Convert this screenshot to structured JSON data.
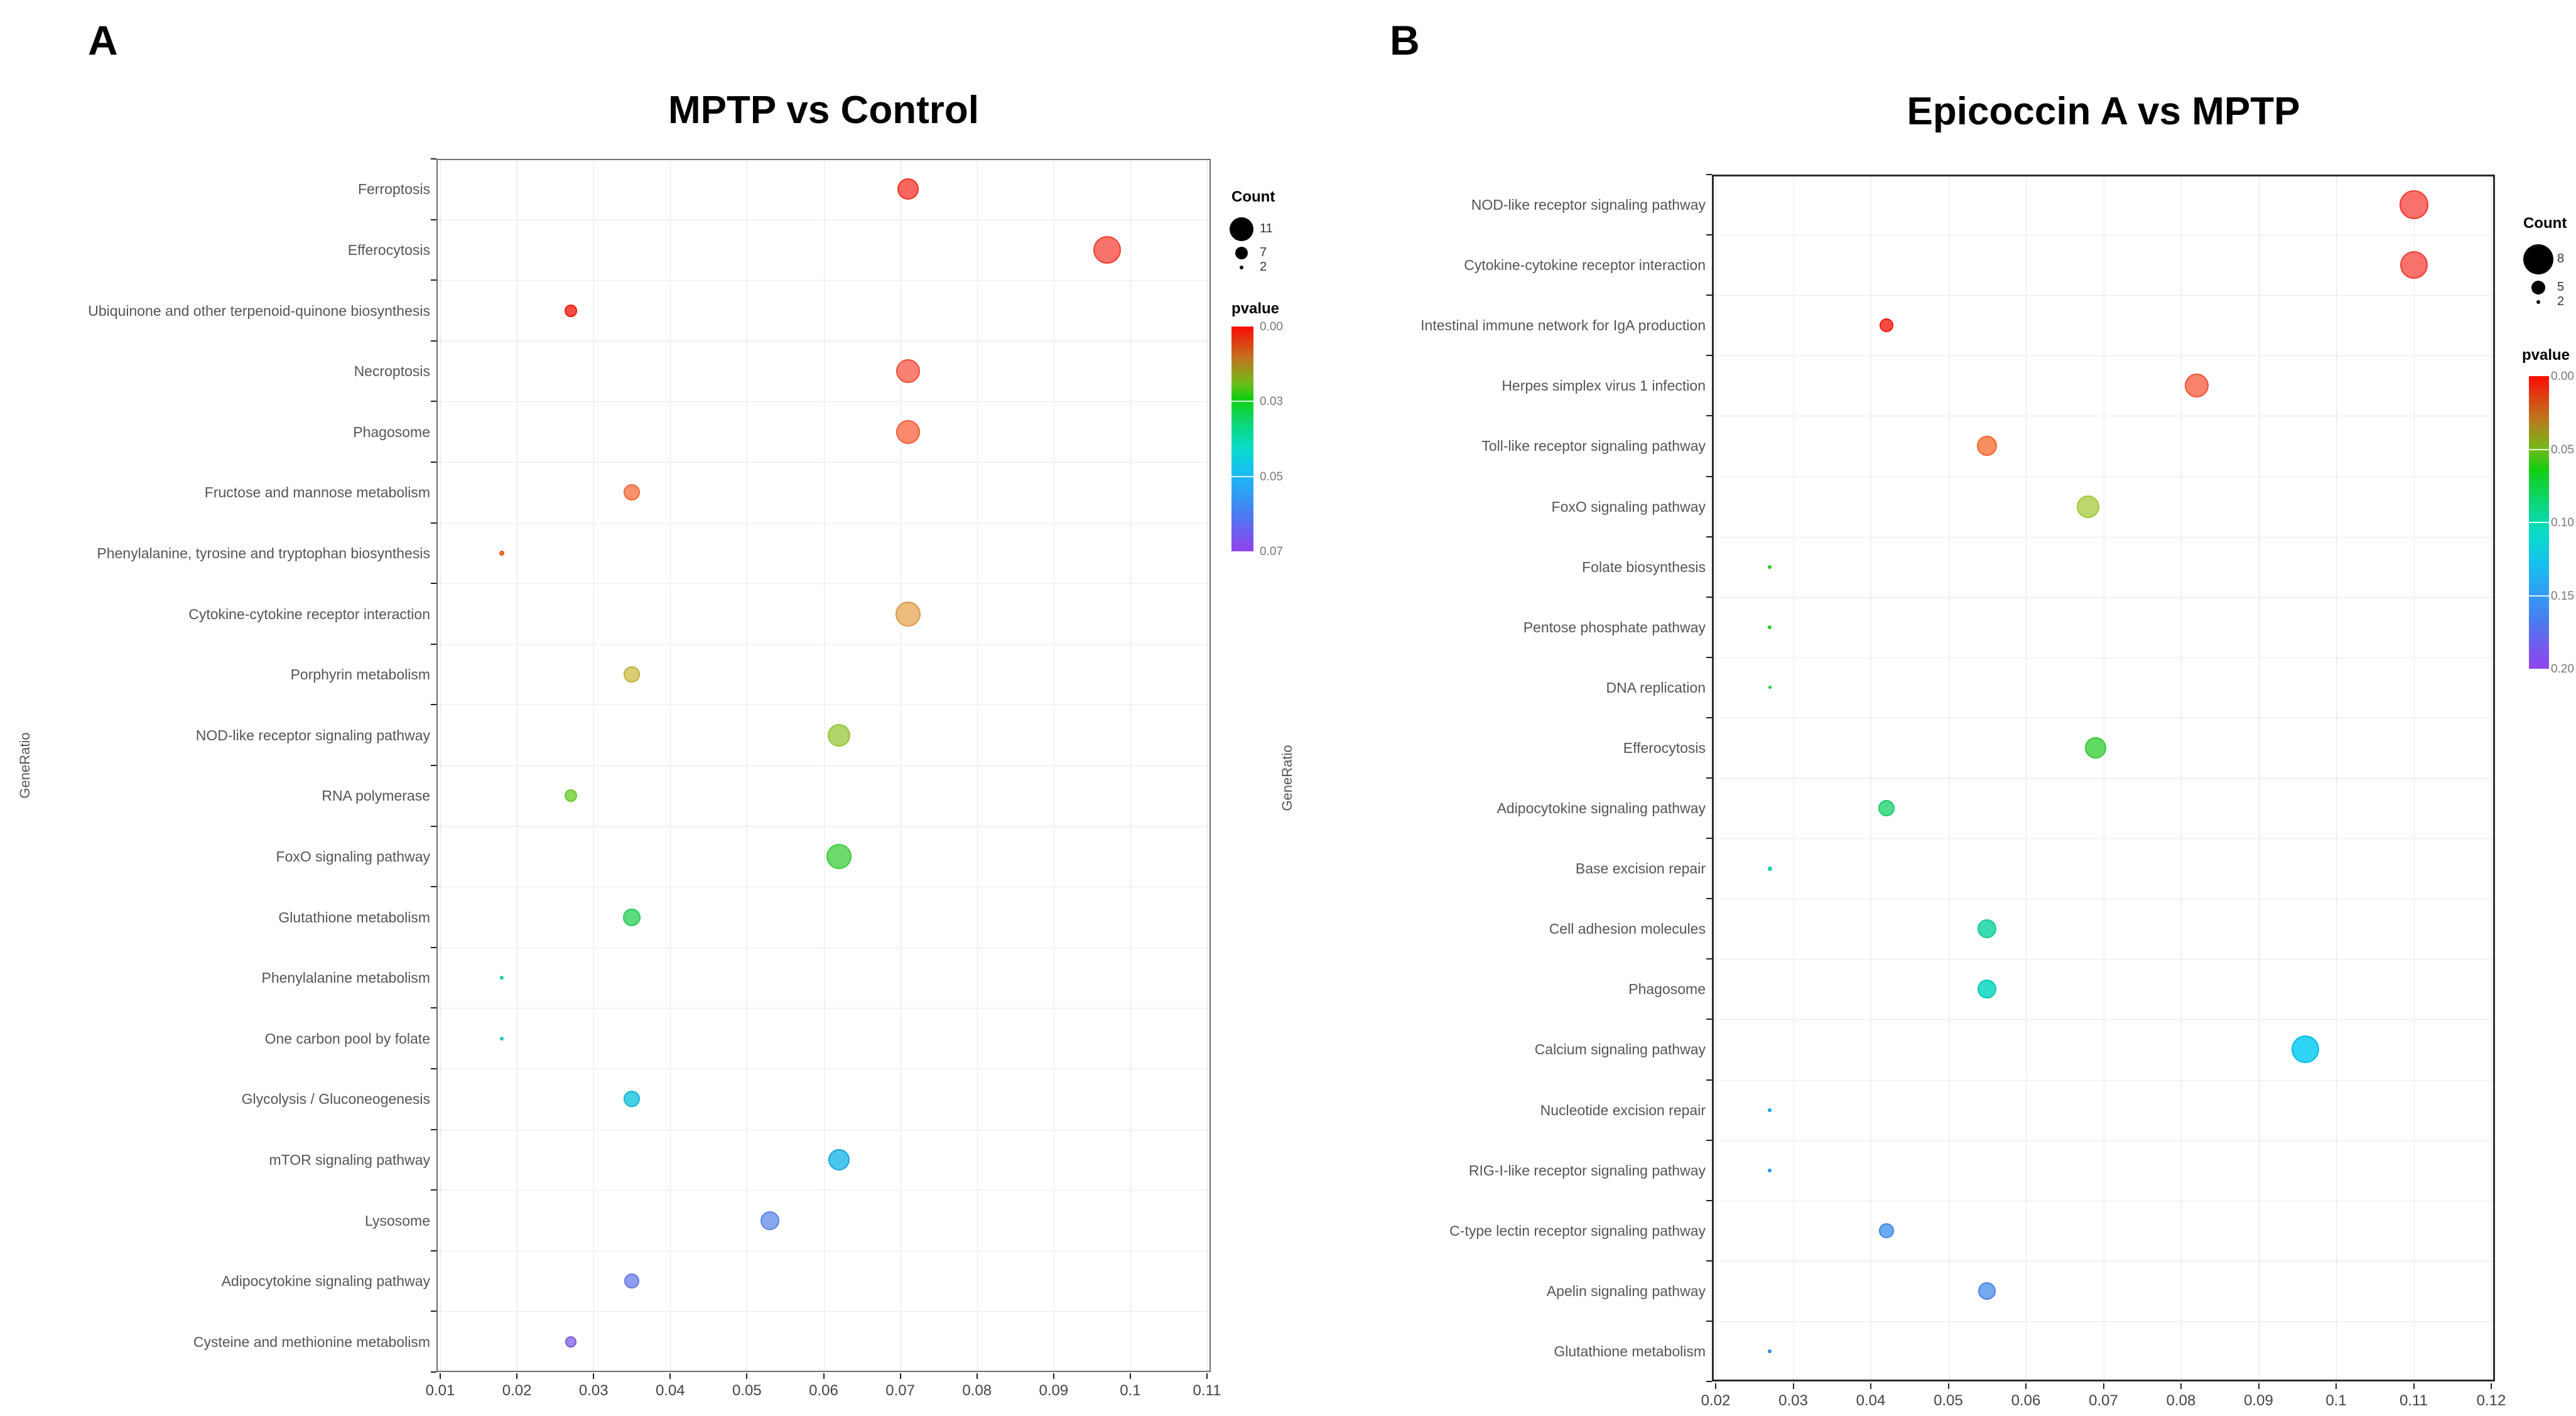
{
  "figure_background": "#ffffff",
  "chart_data": [
    {
      "type": "bubble",
      "panel_letter": "A",
      "title": "MPTP vs Control",
      "axis_title": "GeneRatio",
      "xlabel": "",
      "ylabel": "",
      "xlim": [
        0.0095,
        0.1115
      ],
      "grid": true,
      "xticks": [
        {
          "v": 0.01,
          "label": "0.01"
        },
        {
          "v": 0.02,
          "label": "0.02"
        },
        {
          "v": 0.03,
          "label": "0.03"
        },
        {
          "v": 0.04,
          "label": "0.04"
        },
        {
          "v": 0.05,
          "label": "0.05"
        },
        {
          "v": 0.06,
          "label": "0.06"
        },
        {
          "v": 0.07,
          "label": "0.07"
        },
        {
          "v": 0.08,
          "label": "0.08"
        },
        {
          "v": 0.09,
          "label": "0.09"
        },
        {
          "v": 0.1,
          "label": "0.1"
        },
        {
          "v": 0.11,
          "label": "0.11"
        }
      ],
      "points": [
        {
          "label": "Ferroptosis",
          "gene_ratio": 0.071,
          "count": 7,
          "pvalue": 0.003,
          "r": 17,
          "fill": "#f9675e",
          "stroke": "#ef2f1d"
        },
        {
          "label": "Efferocytosis",
          "gene_ratio": 0.097,
          "count": 11,
          "pvalue": 0.005,
          "r": 22,
          "fill": "#f9726b",
          "stroke": "#ef3c2d"
        },
        {
          "label": "Ubiquinone and other terpenoid-quinone biosynthesis",
          "gene_ratio": 0.027,
          "count": 3,
          "pvalue": 0.002,
          "r": 10,
          "fill": "#f74c43",
          "stroke": "#ee1a0b"
        },
        {
          "label": "Necroptosis",
          "gene_ratio": 0.071,
          "count": 8,
          "pvalue": 0.008,
          "r": 19,
          "fill": "#f98173",
          "stroke": "#f04c33"
        },
        {
          "label": "Phagosome",
          "gene_ratio": 0.071,
          "count": 8,
          "pvalue": 0.01,
          "r": 19,
          "fill": "#f98a6e",
          "stroke": "#f05a30"
        },
        {
          "label": "Fructose and mannose metabolism",
          "gene_ratio": 0.035,
          "count": 4,
          "pvalue": 0.013,
          "r": 13,
          "fill": "#f8926c",
          "stroke": "#ef6732"
        },
        {
          "label": "Phenylalanine, tyrosine and tryptophan biosynthesis",
          "gene_ratio": 0.018,
          "count": 2,
          "pvalue": 0.006,
          "r": 4,
          "fill": "#f7763f",
          "stroke": "#ee4f15"
        },
        {
          "label": "Cytokine-cytokine receptor interaction",
          "gene_ratio": 0.071,
          "count": 8,
          "pvalue": 0.019,
          "r": 20,
          "fill": "#ecbb7e",
          "stroke": "#d89a48"
        },
        {
          "label": "Porphyrin metabolism",
          "gene_ratio": 0.035,
          "count": 4,
          "pvalue": 0.023,
          "r": 13,
          "fill": "#d9cd72",
          "stroke": "#beb23e"
        },
        {
          "label": "NOD-like receptor signaling pathway",
          "gene_ratio": 0.062,
          "count": 7,
          "pvalue": 0.027,
          "r": 18,
          "fill": "#b2d46a",
          "stroke": "#94c538"
        },
        {
          "label": "RNA polymerase",
          "gene_ratio": 0.027,
          "count": 3,
          "pvalue": 0.029,
          "r": 10,
          "fill": "#8ad75c",
          "stroke": "#66c82e"
        },
        {
          "label": "FoxO signaling pathway",
          "gene_ratio": 0.062,
          "count": 8,
          "pvalue": 0.031,
          "r": 20,
          "fill": "#6dda6b",
          "stroke": "#3bcb39"
        },
        {
          "label": "Glutathione metabolism",
          "gene_ratio": 0.035,
          "count": 5,
          "pvalue": 0.033,
          "r": 14,
          "fill": "#5bda7e",
          "stroke": "#2aca55"
        },
        {
          "label": "Phenylalanine metabolism",
          "gene_ratio": 0.018,
          "count": 2,
          "pvalue": 0.041,
          "r": 3,
          "fill": "#36ddb4",
          "stroke": "#0cca9c"
        },
        {
          "label": "One carbon pool by folate",
          "gene_ratio": 0.018,
          "count": 2,
          "pvalue": 0.043,
          "r": 3,
          "fill": "#31daca",
          "stroke": "#09c6b6"
        },
        {
          "label": "Glycolysis / Gluconeogenesis",
          "gene_ratio": 0.035,
          "count": 4,
          "pvalue": 0.047,
          "r": 13,
          "fill": "#43d0e4",
          "stroke": "#17b3d8"
        },
        {
          "label": "mTOR signaling pathway",
          "gene_ratio": 0.062,
          "count": 6,
          "pvalue": 0.049,
          "r": 17,
          "fill": "#4ac5eb",
          "stroke": "#1aa4e0"
        },
        {
          "label": "Lysosome",
          "gene_ratio": 0.053,
          "count": 5,
          "pvalue": 0.056,
          "r": 15,
          "fill": "#87a8ed",
          "stroke": "#5e83e3"
        },
        {
          "label": "Adipocytokine signaling pathway",
          "gene_ratio": 0.035,
          "count": 4,
          "pvalue": 0.059,
          "r": 12,
          "fill": "#8c9ded",
          "stroke": "#6476e3"
        },
        {
          "label": "Cysteine and methionine metabolism",
          "gene_ratio": 0.027,
          "count": 3,
          "pvalue": 0.064,
          "r": 9,
          "fill": "#9d85e9",
          "stroke": "#7b58df"
        }
      ],
      "legend": {
        "count_title": "Count",
        "count_items": [
          {
            "label": "11",
            "r": 19
          },
          {
            "label": "7",
            "r": 10
          },
          {
            "label": "2",
            "r": 3
          }
        ],
        "pvalue_title": "pvalue",
        "pvalue_ticks": [
          "0.00",
          "0.03",
          "0.05",
          "0.07"
        ],
        "gradient": [
          {
            "c": "#fb0b06",
            "p": 0
          },
          {
            "c": "#c1731f",
            "p": 14
          },
          {
            "c": "#71bb1a",
            "p": 25
          },
          {
            "c": "#12ce12",
            "p": 32
          },
          {
            "c": "#0cd77e",
            "p": 44
          },
          {
            "c": "#09dcc9",
            "p": 54
          },
          {
            "c": "#16c1ef",
            "p": 64
          },
          {
            "c": "#2f9ff3",
            "p": 74
          },
          {
            "c": "#4c7af1",
            "p": 84
          },
          {
            "c": "#7e52ee",
            "p": 95
          },
          {
            "c": "#8f46ec",
            "p": 100
          }
        ]
      }
    },
    {
      "type": "bubble",
      "panel_letter": "B",
      "title": "Epicoccin A vs MPTP",
      "axis_title": "GeneRatio",
      "xlabel": "",
      "ylabel": "",
      "xlim": [
        0.0195,
        0.1215
      ],
      "grid": true,
      "xticks": [
        {
          "v": 0.02,
          "label": "0.02"
        },
        {
          "v": 0.03,
          "label": "0.03"
        },
        {
          "v": 0.04,
          "label": "0.04"
        },
        {
          "v": 0.05,
          "label": "0.05"
        },
        {
          "v": 0.06,
          "label": "0.06"
        },
        {
          "v": 0.07,
          "label": "0.07"
        },
        {
          "v": 0.08,
          "label": "0.08"
        },
        {
          "v": 0.09,
          "label": "0.09"
        },
        {
          "v": 0.1,
          "label": "0.1"
        },
        {
          "v": 0.11,
          "label": "0.11"
        },
        {
          "v": 0.12,
          "label": "0.12"
        }
      ],
      "points": [
        {
          "label": "NOD-like receptor signaling pathway",
          "gene_ratio": 0.11,
          "count": 8,
          "pvalue": 0.005,
          "r": 23,
          "fill": "#f9716c",
          "stroke": "#ef3b30"
        },
        {
          "label": "Cytokine-cytokine receptor interaction",
          "gene_ratio": 0.11,
          "count": 8,
          "pvalue": 0.006,
          "r": 22,
          "fill": "#f9716c",
          "stroke": "#ef3b30"
        },
        {
          "label": "Intestinal immune network for IgA production",
          "gene_ratio": 0.042,
          "count": 3,
          "pvalue": 0.003,
          "r": 11,
          "fill": "#f74b41",
          "stroke": "#ee190c"
        },
        {
          "label": "Herpes simplex virus 1 infection",
          "gene_ratio": 0.082,
          "count": 6,
          "pvalue": 0.014,
          "r": 19,
          "fill": "#f9846b",
          "stroke": "#f0502e"
        },
        {
          "label": "Toll-like receptor signaling pathway",
          "gene_ratio": 0.055,
          "count": 5,
          "pvalue": 0.018,
          "r": 16,
          "fill": "#f98e63",
          "stroke": "#f06428"
        },
        {
          "label": "FoxO signaling pathway",
          "gene_ratio": 0.068,
          "count": 5,
          "pvalue": 0.046,
          "r": 18,
          "fill": "#bcd76c",
          "stroke": "#a0c838"
        },
        {
          "label": "Folate biosynthesis",
          "gene_ratio": 0.027,
          "count": 2,
          "pvalue": 0.056,
          "r": 3,
          "fill": "#4adc4a",
          "stroke": "#1ecb1e"
        },
        {
          "label": "Pentose phosphate pathway",
          "gene_ratio": 0.027,
          "count": 2,
          "pvalue": 0.057,
          "r": 3,
          "fill": "#4adc4a",
          "stroke": "#1ecb1e"
        },
        {
          "label": "DNA replication",
          "gene_ratio": 0.027,
          "count": 2,
          "pvalue": 0.058,
          "r": 2.5,
          "fill": "#4adc4a",
          "stroke": "#1ecb1e"
        },
        {
          "label": "Efferocytosis",
          "gene_ratio": 0.069,
          "count": 5,
          "pvalue": 0.066,
          "r": 17,
          "fill": "#63da63",
          "stroke": "#33ca35"
        },
        {
          "label": "Adipocytokine signaling pathway",
          "gene_ratio": 0.042,
          "count": 4,
          "pvalue": 0.076,
          "r": 13,
          "fill": "#4edc90",
          "stroke": "#1fcb66"
        },
        {
          "label": "Base excision repair",
          "gene_ratio": 0.027,
          "count": 2,
          "pvalue": 0.086,
          "r": 3.5,
          "fill": "#39dcc1",
          "stroke": "#10c9a8"
        },
        {
          "label": "Cell adhesion molecules",
          "gene_ratio": 0.055,
          "count": 5,
          "pvalue": 0.092,
          "r": 15,
          "fill": "#3ddcb0",
          "stroke": "#13c994"
        },
        {
          "label": "Phagosome",
          "gene_ratio": 0.055,
          "count": 5,
          "pvalue": 0.096,
          "r": 15,
          "fill": "#30dcca",
          "stroke": "#0ac7b4"
        },
        {
          "label": "Calcium signaling pathway",
          "gene_ratio": 0.096,
          "count": 8,
          "pvalue": 0.106,
          "r": 22,
          "fill": "#2fd3f3",
          "stroke": "#09b6e8"
        },
        {
          "label": "Nucleotide excision repair",
          "gene_ratio": 0.027,
          "count": 2,
          "pvalue": 0.116,
          "r": 3,
          "fill": "#36c3f3",
          "stroke": "#0ba6e8"
        },
        {
          "label": "RIG-I-like receptor signaling pathway",
          "gene_ratio": 0.027,
          "count": 2,
          "pvalue": 0.132,
          "r": 3,
          "fill": "#4bb0f3",
          "stroke": "#1f90e8"
        },
        {
          "label": "C-type lectin receptor signaling pathway",
          "gene_ratio": 0.042,
          "count": 4,
          "pvalue": 0.142,
          "r": 12,
          "fill": "#6cabef",
          "stroke": "#4186e5"
        },
        {
          "label": "Apelin signaling pathway",
          "gene_ratio": 0.055,
          "count": 5,
          "pvalue": 0.152,
          "r": 14,
          "fill": "#74a8ef",
          "stroke": "#4c82e5"
        },
        {
          "label": "Glutathione metabolism",
          "gene_ratio": 0.027,
          "count": 2,
          "pvalue": 0.162,
          "r": 3,
          "fill": "#56a2f1",
          "stroke": "#2b80e7"
        }
      ],
      "legend": {
        "count_title": "Count",
        "count_items": [
          {
            "label": "8",
            "r": 24
          },
          {
            "label": "5",
            "r": 11
          },
          {
            "label": "2",
            "r": 3
          }
        ],
        "pvalue_title": "pvalue",
        "pvalue_ticks": [
          "0.00",
          "0.05",
          "0.10",
          "0.15",
          "0.20"
        ],
        "gradient": [
          {
            "c": "#fb0b06",
            "p": 0
          },
          {
            "c": "#c1731f",
            "p": 14
          },
          {
            "c": "#71bb1a",
            "p": 25
          },
          {
            "c": "#12ce12",
            "p": 32
          },
          {
            "c": "#0cd77e",
            "p": 44
          },
          {
            "c": "#09dcc9",
            "p": 54
          },
          {
            "c": "#16c1ef",
            "p": 64
          },
          {
            "c": "#2f9ff3",
            "p": 74
          },
          {
            "c": "#4c7af1",
            "p": 84
          },
          {
            "c": "#7e52ee",
            "p": 95
          },
          {
            "c": "#8f46ec",
            "p": 100
          }
        ]
      }
    }
  ]
}
